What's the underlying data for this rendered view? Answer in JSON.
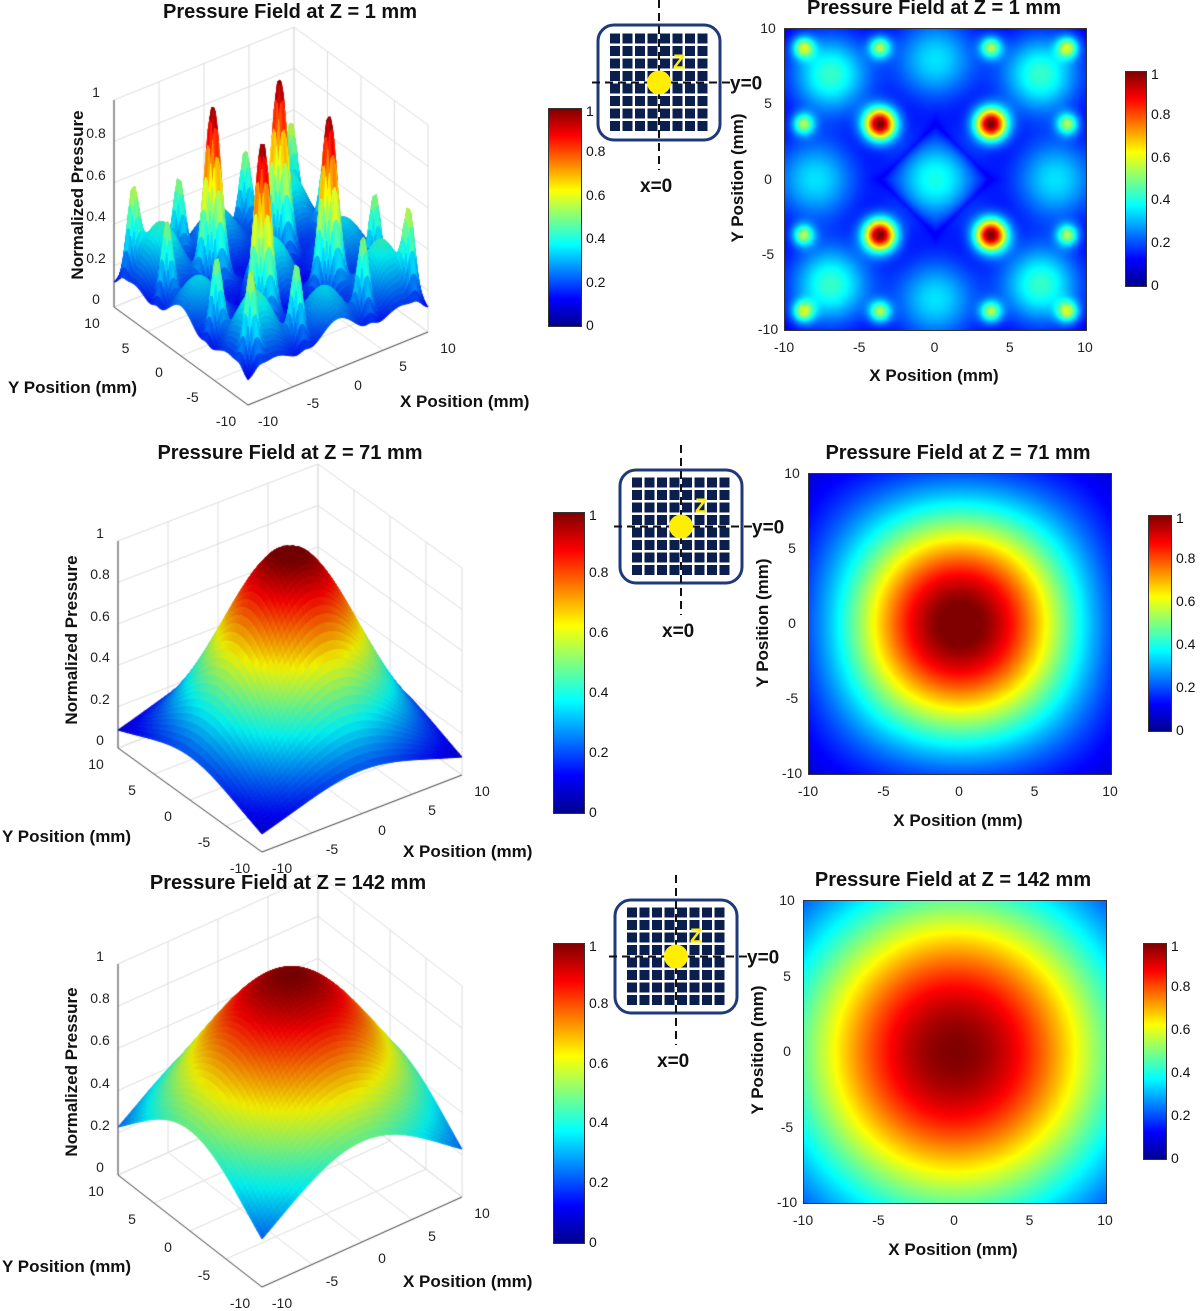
{
  "figure": {
    "colormap": "jet",
    "colors": {
      "transducer_fill": "#0b1f4f",
      "transducer_border": "#1f3a78",
      "focus_dot": "#ffee00"
    }
  },
  "diagrams": [
    {
      "z_label": "Z",
      "y_label": "y=0",
      "x_label": "x=0"
    },
    {
      "z_label": "Z",
      "y_label": "y=0",
      "x_label": "x=0"
    },
    {
      "z_label": "Z",
      "y_label": "y=0",
      "x_label": "x=0"
    }
  ],
  "chart_data": [
    {
      "type": "surface",
      "title": "Pressure Field at Z = 1 mm",
      "xlabel": "X Position (mm)",
      "ylabel": "Y Position (mm)",
      "zlabel": "Normalized Pressure",
      "xlim": [
        -10,
        10
      ],
      "ylim": [
        -10,
        10
      ],
      "zlim": [
        0,
        1
      ],
      "xticks": [
        "-10",
        "-5",
        "0",
        "5",
        "10"
      ],
      "yticks": [
        "-10",
        "-5",
        "0",
        "5",
        "10"
      ],
      "zticks": [
        "0",
        "0.2",
        "0.4",
        "0.6",
        "0.8",
        "1"
      ],
      "colorbar_ticks": [
        "0",
        "0.2",
        "0.4",
        "0.6",
        "0.8",
        "1"
      ],
      "grid": true,
      "colormap": "jet",
      "peaks": [
        {
          "x": -3.7,
          "y": 3.7,
          "z": 1
        },
        {
          "x": 3.7,
          "y": 3.7,
          "z": 1
        },
        {
          "x": -3.7,
          "y": -3.7,
          "z": 1
        },
        {
          "x": 3.7,
          "y": -3.7,
          "z": 1
        }
      ]
    },
    {
      "type": "heatmap",
      "title": "Pressure Field at Z = 1 mm",
      "xlabel": "X Position (mm)",
      "ylabel": "Y Position (mm)",
      "xlim": [
        -10,
        10
      ],
      "ylim": [
        -10,
        10
      ],
      "clim": [
        0,
        1
      ],
      "xticks": [
        "-10",
        "-5",
        "0",
        "5",
        "10"
      ],
      "yticks": [
        "-10",
        "-5",
        "0",
        "5",
        "10"
      ],
      "colorbar_ticks": [
        "0",
        "0.2",
        "0.4",
        "0.6",
        "0.8",
        "1"
      ],
      "colormap": "jet"
    },
    {
      "type": "surface",
      "title": "Pressure Field at Z = 71 mm",
      "xlabel": "X Position (mm)",
      "ylabel": "Y Position (mm)",
      "zlabel": "Normalized Pressure",
      "xlim": [
        -10,
        10
      ],
      "ylim": [
        -10,
        10
      ],
      "zlim": [
        0,
        1
      ],
      "xticks": [
        "-10",
        "-5",
        "0",
        "5",
        "10"
      ],
      "yticks": [
        "-10",
        "-5",
        "0",
        "5",
        "10"
      ],
      "zticks": [
        "0",
        "0.2",
        "0.4",
        "0.6",
        "0.8",
        "1"
      ],
      "colorbar_ticks": [
        "0",
        "0.2",
        "0.4",
        "0.6",
        "0.8",
        "1"
      ],
      "grid": true,
      "colormap": "jet",
      "peaks": [
        {
          "x": 0,
          "y": 0,
          "z": 1
        }
      ]
    },
    {
      "type": "heatmap",
      "title": "Pressure Field at Z = 71 mm",
      "xlabel": "X Position (mm)",
      "ylabel": "Y Position (mm)",
      "xlim": [
        -10,
        10
      ],
      "ylim": [
        -10,
        10
      ],
      "clim": [
        0,
        1
      ],
      "xticks": [
        "-10",
        "-5",
        "0",
        "5",
        "10"
      ],
      "yticks": [
        "-10",
        "-5",
        "0",
        "5",
        "10"
      ],
      "colorbar_ticks": [
        "0",
        "0.2",
        "0.4",
        "0.6",
        "0.8",
        "1"
      ],
      "colormap": "jet"
    },
    {
      "type": "surface",
      "title": "Pressure Field at Z = 142 mm",
      "xlabel": "X Position (mm)",
      "ylabel": "Y Position (mm)",
      "zlabel": "Normalized Pressure",
      "xlim": [
        -10,
        10
      ],
      "ylim": [
        -10,
        10
      ],
      "zlim": [
        0,
        1
      ],
      "xticks": [
        "-10",
        "-5",
        "0",
        "5",
        "10"
      ],
      "yticks": [
        "-10",
        "-5",
        "0",
        "5",
        "10"
      ],
      "zticks": [
        "0",
        "0.2",
        "0.4",
        "0.6",
        "0.8",
        "1"
      ],
      "colorbar_ticks": [
        "0",
        "0.2",
        "0.4",
        "0.6",
        "0.8",
        "1"
      ],
      "grid": true,
      "colormap": "jet",
      "peaks": [
        {
          "x": 0,
          "y": 0,
          "z": 1
        }
      ]
    },
    {
      "type": "heatmap",
      "title": "Pressure Field at Z = 142 mm",
      "xlabel": "X Position (mm)",
      "ylabel": "Y Position (mm)",
      "xlim": [
        -10,
        10
      ],
      "ylim": [
        -10,
        10
      ],
      "clim": [
        0,
        1
      ],
      "xticks": [
        "-10",
        "-5",
        "0",
        "5",
        "10"
      ],
      "yticks": [
        "-10",
        "-5",
        "0",
        "5",
        "10"
      ],
      "colorbar_ticks": [
        "0",
        "0.2",
        "0.4",
        "0.6",
        "0.8",
        "1"
      ],
      "colormap": "jet"
    }
  ]
}
